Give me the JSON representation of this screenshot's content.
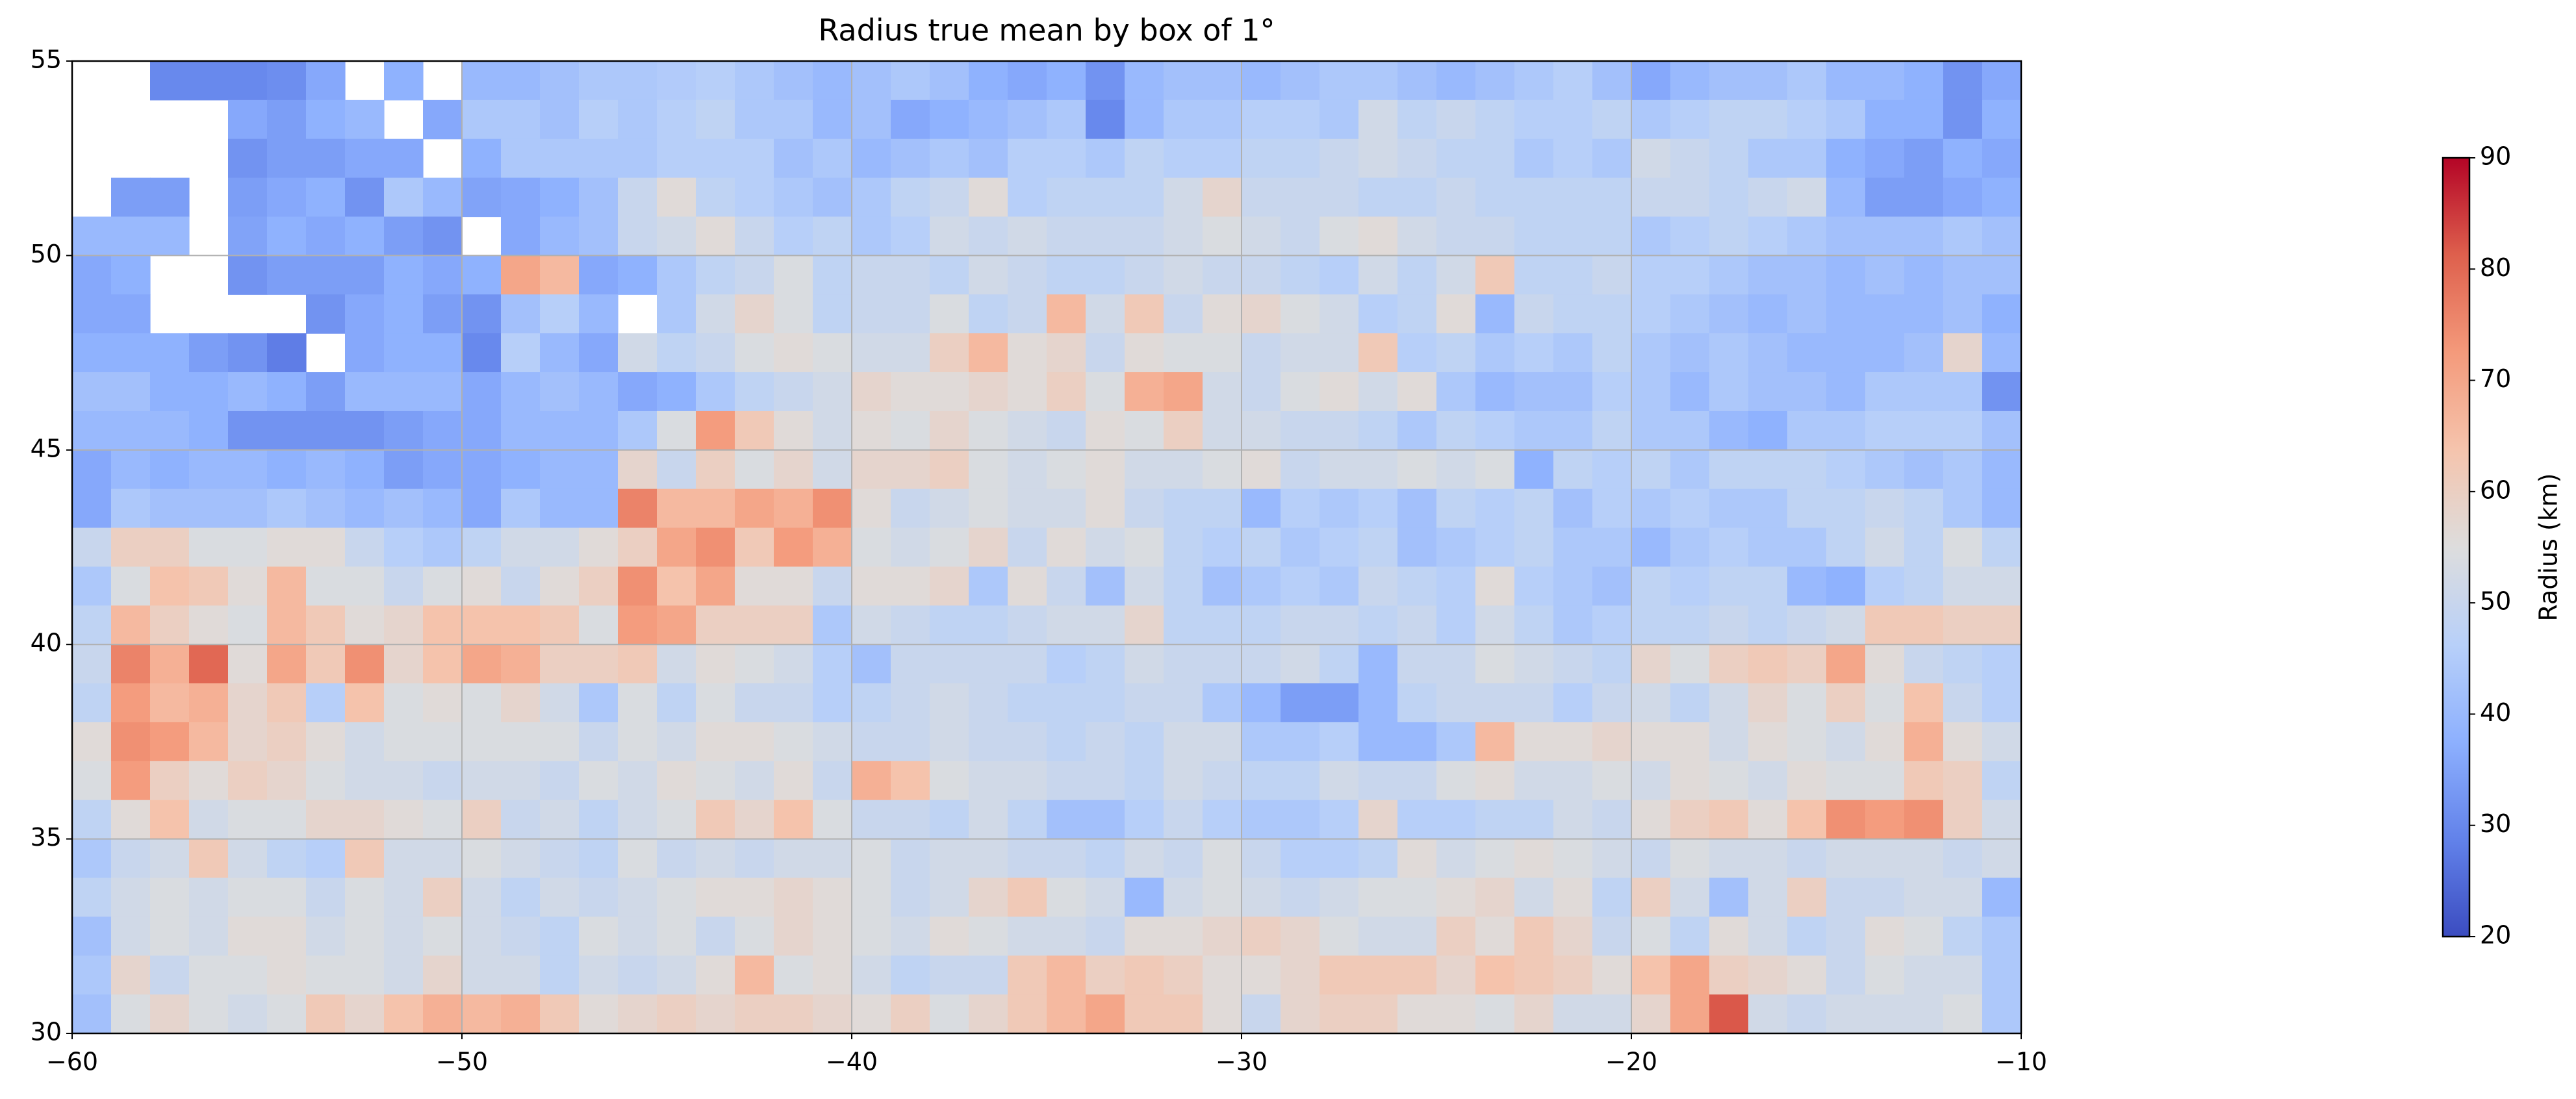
{
  "chart_data": {
    "type": "heatmap",
    "title": "Radius true mean by box of 1°",
    "xlim": [
      -60,
      -10
    ],
    "ylim": [
      30,
      55
    ],
    "xticks": [
      {
        "value": -60,
        "label": "−60"
      },
      {
        "value": -50,
        "label": "−50"
      },
      {
        "value": -40,
        "label": "−40"
      },
      {
        "value": -30,
        "label": "−30"
      },
      {
        "value": -20,
        "label": "−20"
      },
      {
        "value": -10,
        "label": "−10"
      }
    ],
    "yticks": [
      30,
      35,
      40,
      45,
      50,
      55
    ],
    "grid": true,
    "cmap": "coolwarm",
    "colorbar": {
      "label": "Radius (km)",
      "lim": [
        20,
        90
      ],
      "ticks": [
        20,
        30,
        40,
        50,
        60,
        70,
        80,
        90
      ]
    },
    "values": [
      [
        null,
        null,
        30,
        30,
        30,
        31,
        36,
        null,
        38,
        null,
        40,
        40,
        42,
        44,
        44,
        45,
        46,
        44,
        42,
        40,
        42,
        44,
        42,
        38,
        36,
        38,
        32,
        40,
        42,
        42,
        40,
        42,
        44,
        44,
        42,
        40,
        42,
        44,
        46,
        42,
        36,
        40,
        42,
        42,
        44,
        40,
        40,
        38,
        32,
        36
      ],
      [
        null,
        null,
        null,
        null,
        36,
        34,
        38,
        40,
        null,
        36,
        44,
        44,
        42,
        46,
        44,
        46,
        48,
        44,
        44,
        40,
        42,
        36,
        38,
        40,
        42,
        44,
        30,
        40,
        44,
        44,
        46,
        46,
        44,
        52,
        48,
        50,
        48,
        46,
        46,
        48,
        44,
        46,
        48,
        48,
        46,
        44,
        38,
        38,
        32,
        38
      ],
      [
        null,
        null,
        null,
        null,
        32,
        34,
        34,
        36,
        36,
        null,
        38,
        44,
        44,
        44,
        44,
        46,
        46,
        46,
        42,
        44,
        40,
        42,
        44,
        42,
        46,
        46,
        44,
        48,
        46,
        46,
        48,
        48,
        50,
        52,
        50,
        48,
        48,
        44,
        46,
        44,
        52,
        50,
        48,
        44,
        44,
        38,
        36,
        34,
        38,
        36
      ],
      [
        null,
        34,
        34,
        null,
        34,
        36,
        38,
        32,
        44,
        40,
        35,
        36,
        38,
        42,
        50,
        56,
        48,
        46,
        44,
        42,
        44,
        48,
        50,
        56,
        46,
        48,
        48,
        48,
        52,
        58,
        50,
        50,
        50,
        48,
        48,
        50,
        48,
        48,
        48,
        48,
        50,
        50,
        48,
        50,
        52,
        40,
        34,
        34,
        36,
        38
      ],
      [
        40,
        40,
        40,
        null,
        35,
        38,
        36,
        38,
        34,
        32,
        null,
        36,
        40,
        42,
        50,
        52,
        56,
        50,
        46,
        48,
        44,
        46,
        52,
        50,
        52,
        50,
        50,
        50,
        52,
        54,
        52,
        50,
        54,
        56,
        52,
        50,
        50,
        48,
        48,
        48,
        44,
        46,
        48,
        46,
        44,
        42,
        42,
        42,
        44,
        42
      ],
      [
        36,
        38,
        null,
        null,
        32,
        34,
        34,
        34,
        38,
        36,
        38,
        70,
        66,
        36,
        38,
        44,
        48,
        50,
        54,
        48,
        50,
        50,
        48,
        52,
        50,
        48,
        48,
        50,
        52,
        50,
        50,
        48,
        46,
        52,
        48,
        52,
        62,
        48,
        48,
        50,
        46,
        46,
        44,
        42,
        42,
        40,
        42,
        40,
        42,
        42
      ],
      [
        36,
        36,
        null,
        null,
        null,
        null,
        32,
        36,
        38,
        34,
        32,
        42,
        46,
        40,
        null,
        44,
        52,
        58,
        54,
        48,
        50,
        50,
        54,
        48,
        50,
        66,
        52,
        62,
        50,
        56,
        58,
        54,
        52,
        46,
        48,
        56,
        40,
        50,
        48,
        48,
        46,
        44,
        42,
        40,
        42,
        40,
        40,
        40,
        42,
        38
      ],
      [
        38,
        38,
        38,
        34,
        32,
        28,
        null,
        36,
        38,
        38,
        30,
        46,
        40,
        36,
        52,
        48,
        50,
        54,
        56,
        54,
        52,
        52,
        60,
        66,
        56,
        58,
        50,
        56,
        54,
        54,
        50,
        52,
        52,
        62,
        46,
        48,
        44,
        46,
        44,
        48,
        44,
        42,
        44,
        42,
        40,
        40,
        40,
        42,
        58,
        40
      ],
      [
        42,
        42,
        38,
        38,
        40,
        38,
        34,
        40,
        40,
        40,
        36,
        40,
        42,
        40,
        36,
        38,
        44,
        48,
        50,
        52,
        58,
        56,
        56,
        58,
        56,
        60,
        54,
        68,
        70,
        52,
        50,
        54,
        56,
        52,
        56,
        44,
        40,
        42,
        42,
        46,
        44,
        40,
        44,
        42,
        42,
        40,
        44,
        44,
        44,
        32
      ],
      [
        40,
        40,
        40,
        38,
        32,
        32,
        32,
        32,
        34,
        36,
        36,
        40,
        40,
        40,
        44,
        54,
        72,
        62,
        56,
        52,
        56,
        54,
        58,
        54,
        52,
        50,
        56,
        54,
        60,
        52,
        52,
        50,
        50,
        48,
        44,
        48,
        46,
        44,
        44,
        48,
        44,
        44,
        40,
        38,
        44,
        44,
        46,
        46,
        46,
        42
      ],
      [
        36,
        40,
        38,
        40,
        40,
        38,
        40,
        38,
        34,
        36,
        36,
        38,
        40,
        40,
        58,
        50,
        60,
        54,
        58,
        52,
        58,
        58,
        60,
        54,
        52,
        54,
        56,
        52,
        52,
        54,
        56,
        50,
        52,
        52,
        54,
        52,
        54,
        38,
        48,
        46,
        48,
        44,
        48,
        48,
        48,
        46,
        44,
        42,
        44,
        40
      ],
      [
        36,
        44,
        42,
        42,
        42,
        44,
        42,
        40,
        42,
        40,
        36,
        44,
        40,
        40,
        76,
        66,
        66,
        70,
        68,
        74,
        56,
        50,
        52,
        54,
        52,
        52,
        56,
        50,
        48,
        48,
        40,
        46,
        44,
        46,
        42,
        48,
        46,
        48,
        42,
        46,
        44,
        46,
        44,
        44,
        48,
        48,
        50,
        48,
        44,
        40
      ],
      [
        50,
        60,
        60,
        54,
        54,
        56,
        56,
        50,
        46,
        44,
        48,
        52,
        52,
        56,
        60,
        70,
        74,
        62,
        72,
        68,
        54,
        52,
        54,
        58,
        50,
        56,
        52,
        54,
        48,
        46,
        48,
        44,
        46,
        48,
        42,
        44,
        46,
        48,
        44,
        44,
        40,
        44,
        46,
        44,
        44,
        48,
        52,
        48,
        54,
        48
      ],
      [
        44,
        54,
        64,
        62,
        56,
        66,
        54,
        54,
        50,
        54,
        56,
        50,
        56,
        60,
        74,
        64,
        70,
        56,
        56,
        50,
        56,
        56,
        58,
        44,
        56,
        50,
        42,
        52,
        48,
        42,
        44,
        46,
        44,
        50,
        48,
        46,
        56,
        46,
        44,
        42,
        48,
        46,
        48,
        48,
        40,
        38,
        46,
        48,
        52,
        52
      ],
      [
        48,
        66,
        60,
        56,
        54,
        66,
        62,
        56,
        58,
        64,
        64,
        64,
        62,
        54,
        72,
        70,
        60,
        60,
        60,
        44,
        52,
        50,
        48,
        48,
        50,
        52,
        52,
        58,
        48,
        48,
        48,
        50,
        50,
        48,
        50,
        46,
        52,
        48,
        44,
        46,
        48,
        48,
        50,
        48,
        50,
        52,
        62,
        62,
        60,
        60
      ],
      [
        50,
        76,
        68,
        80,
        56,
        70,
        62,
        74,
        58,
        64,
        70,
        68,
        60,
        60,
        62,
        52,
        56,
        54,
        52,
        46,
        42,
        50,
        50,
        50,
        50,
        46,
        48,
        52,
        50,
        50,
        50,
        52,
        48,
        40,
        50,
        50,
        54,
        52,
        50,
        48,
        58,
        54,
        60,
        62,
        60,
        70,
        56,
        50,
        48,
        46
      ],
      [
        48,
        72,
        66,
        68,
        58,
        62,
        46,
        64,
        54,
        56,
        54,
        58,
        52,
        44,
        54,
        48,
        54,
        50,
        50,
        46,
        48,
        50,
        52,
        50,
        48,
        48,
        48,
        50,
        50,
        44,
        40,
        34,
        34,
        40,
        48,
        50,
        50,
        50,
        46,
        50,
        52,
        48,
        52,
        58,
        54,
        60,
        54,
        64,
        50,
        46
      ],
      [
        56,
        74,
        72,
        66,
        58,
        60,
        56,
        52,
        54,
        54,
        54,
        54,
        54,
        50,
        54,
        52,
        56,
        56,
        54,
        52,
        50,
        50,
        52,
        50,
        50,
        48,
        50,
        48,
        52,
        52,
        44,
        44,
        46,
        40,
        40,
        44,
        66,
        56,
        56,
        58,
        56,
        56,
        52,
        56,
        54,
        52,
        56,
        68,
        56,
        52
      ],
      [
        54,
        72,
        60,
        56,
        60,
        58,
        54,
        52,
        52,
        50,
        52,
        52,
        50,
        54,
        52,
        56,
        54,
        52,
        56,
        50,
        68,
        64,
        54,
        52,
        52,
        50,
        50,
        48,
        52,
        50,
        48,
        48,
        52,
        50,
        50,
        54,
        56,
        52,
        52,
        54,
        52,
        56,
        54,
        52,
        56,
        54,
        54,
        62,
        60,
        48
      ],
      [
        48,
        56,
        64,
        52,
        54,
        54,
        58,
        58,
        56,
        54,
        60,
        50,
        52,
        48,
        52,
        54,
        62,
        58,
        64,
        54,
        50,
        50,
        48,
        52,
        48,
        42,
        42,
        46,
        50,
        46,
        44,
        44,
        46,
        58,
        46,
        46,
        48,
        48,
        52,
        50,
        56,
        60,
        62,
        56,
        64,
        74,
        72,
        74,
        60,
        52
      ],
      [
        44,
        50,
        52,
        62,
        52,
        48,
        46,
        62,
        52,
        52,
        54,
        52,
        50,
        48,
        54,
        50,
        52,
        50,
        52,
        52,
        54,
        50,
        52,
        52,
        50,
        50,
        48,
        52,
        50,
        54,
        50,
        46,
        46,
        48,
        56,
        52,
        54,
        56,
        54,
        52,
        50,
        54,
        52,
        52,
        50,
        52,
        52,
        52,
        50,
        52
      ],
      [
        48,
        52,
        54,
        52,
        54,
        54,
        50,
        54,
        52,
        60,
        52,
        48,
        52,
        50,
        52,
        54,
        56,
        56,
        58,
        56,
        54,
        50,
        52,
        58,
        62,
        54,
        52,
        40,
        52,
        54,
        52,
        50,
        52,
        54,
        54,
        56,
        58,
        52,
        56,
        48,
        60,
        52,
        42,
        52,
        60,
        50,
        50,
        52,
        52,
        40
      ],
      [
        42,
        52,
        54,
        52,
        56,
        56,
        52,
        54,
        52,
        54,
        52,
        50,
        48,
        54,
        52,
        54,
        50,
        54,
        58,
        56,
        54,
        52,
        56,
        54,
        52,
        52,
        50,
        56,
        56,
        58,
        60,
        58,
        54,
        52,
        52,
        60,
        56,
        62,
        58,
        50,
        54,
        48,
        56,
        52,
        48,
        50,
        56,
        54,
        48,
        44
      ],
      [
        44,
        58,
        50,
        54,
        54,
        56,
        54,
        54,
        52,
        58,
        52,
        52,
        48,
        52,
        50,
        52,
        56,
        66,
        54,
        56,
        52,
        48,
        50,
        50,
        62,
        66,
        60,
        62,
        60,
        56,
        56,
        58,
        62,
        62,
        62,
        58,
        64,
        62,
        60,
        56,
        64,
        70,
        60,
        58,
        56,
        50,
        54,
        52,
        52,
        44
      ],
      [
        42,
        54,
        58,
        54,
        52,
        54,
        62,
        58,
        64,
        68,
        66,
        68,
        62,
        56,
        58,
        60,
        58,
        60,
        60,
        58,
        56,
        60,
        54,
        58,
        62,
        66,
        70,
        62,
        62,
        56,
        50,
        58,
        60,
        60,
        56,
        56,
        54,
        58,
        52,
        52,
        58,
        70,
        82,
        52,
        50,
        52,
        52,
        52,
        54,
        44
      ]
    ]
  }
}
